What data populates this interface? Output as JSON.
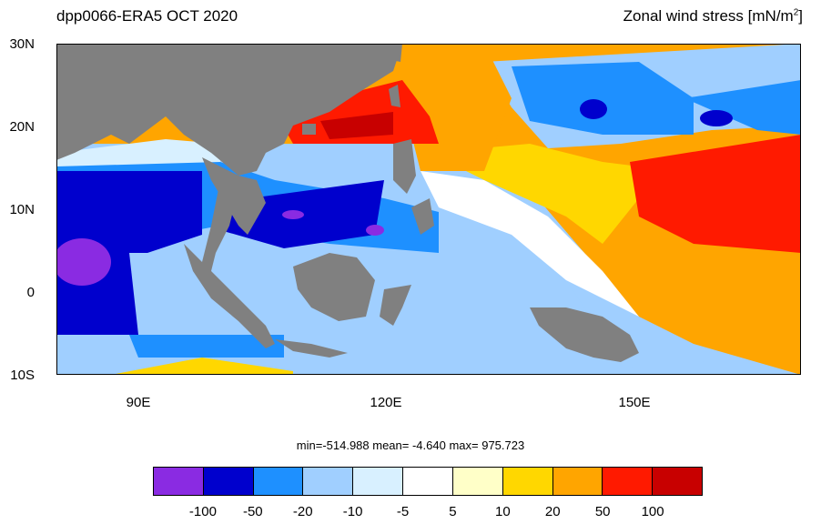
{
  "header": {
    "left_title": "dpp0066-ERA5  OCT 2020",
    "right_title_text": "Zonal wind stress [mN/m",
    "right_title_sup": "2",
    "right_title_end": "]"
  },
  "axes": {
    "y_labels": [
      "30N",
      "20N",
      "10N",
      "0",
      "10S"
    ],
    "x_labels": [
      "90E",
      "120E",
      "150E"
    ]
  },
  "stats": "min=-514.988  mean=  -4.640  max= 975.723",
  "colorbar": {
    "colors": [
      "#8a2be2",
      "#0000cd",
      "#1e90ff",
      "#a0cfff",
      "#d8f0ff",
      "#ffffff",
      "#ffffc8",
      "#ffd700",
      "#ffa500",
      "#ff1a00",
      "#c80000"
    ],
    "labels": [
      "-100",
      "-50",
      "-20",
      "-10",
      "-5",
      "5",
      "10",
      "20",
      "50",
      "100"
    ]
  },
  "colors": {
    "land": "#808080",
    "frame": "#000000"
  }
}
